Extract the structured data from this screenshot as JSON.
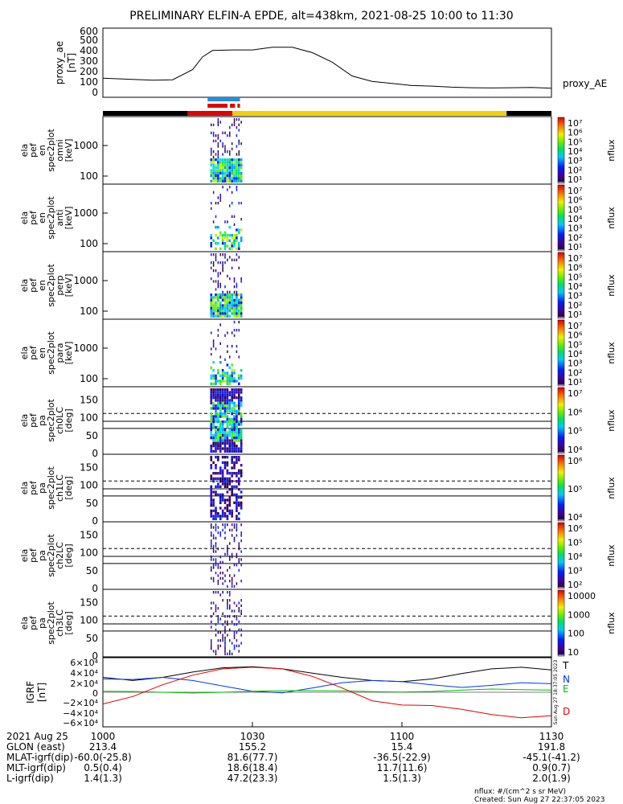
{
  "title": "PRELIMINARY ELFIN-A EPDE, alt=438km, 2021-08-25 10:00 to 11:30",
  "ae_panel": {
    "ylabel": [
      "proxy_ae",
      "[nT]"
    ],
    "ticks": [
      "600",
      "500",
      "400",
      "300",
      "200",
      "100",
      "0"
    ],
    "legend": "proxy_AE"
  },
  "spec_panels": [
    {
      "ylabel": [
        "ela",
        "pef",
        "en",
        "spec2plot",
        "omni",
        "[keV]"
      ],
      "ticks": [
        "1000",
        "100"
      ],
      "cbar_ticks": [
        "10⁷",
        "10⁶",
        "10⁵",
        "10⁴",
        "10³",
        "10²",
        "10¹"
      ],
      "cbar_label": "nflux"
    },
    {
      "ylabel": [
        "ela",
        "pef",
        "en",
        "spec2plot",
        "anti",
        "[keV]"
      ],
      "ticks": [
        "1000",
        "100"
      ],
      "cbar_ticks": [
        "10⁷",
        "10⁶",
        "10⁵",
        "10⁴",
        "10³",
        "10²",
        "10¹"
      ],
      "cbar_label": "nflux"
    },
    {
      "ylabel": [
        "ela",
        "pef",
        "en",
        "spec2plot",
        "perp",
        "[keV]"
      ],
      "ticks": [
        "1000",
        "100"
      ],
      "cbar_ticks": [
        "10⁷",
        "10⁶",
        "10⁵",
        "10⁴",
        "10³",
        "10²",
        "10¹"
      ],
      "cbar_label": "nflux"
    },
    {
      "ylabel": [
        "ela",
        "pef",
        "en",
        "spec2plot",
        "para",
        "[keV]"
      ],
      "ticks": [
        "1000",
        "100"
      ],
      "cbar_ticks": [
        "10⁷",
        "10⁶",
        "10⁵",
        "10⁴",
        "10³",
        "10²",
        "10¹"
      ],
      "cbar_label": "nflux"
    },
    {
      "ylabel": [
        "ela",
        "pef",
        "pa",
        "spec2plot",
        "ch0LC",
        "[deg]"
      ],
      "ticks": [
        "150",
        "100",
        "50",
        "0"
      ],
      "cbar_ticks": [
        "10⁷",
        "10⁶",
        "10⁵",
        "10⁴"
      ],
      "cbar_label": "nflux"
    },
    {
      "ylabel": [
        "ela",
        "pef",
        "pa",
        "spec2plot",
        "ch1LC",
        "[deg]"
      ],
      "ticks": [
        "150",
        "100",
        "50",
        "0"
      ],
      "cbar_ticks": [
        "10⁶",
        "10⁵",
        "10⁴"
      ],
      "cbar_label": "nflux"
    },
    {
      "ylabel": [
        "ela",
        "pef",
        "pa",
        "spec2plot",
        "ch2LC",
        "[deg]"
      ],
      "ticks": [
        "150",
        "100",
        "50",
        "0"
      ],
      "cbar_ticks": [
        "10⁶",
        "10⁵",
        "10⁴",
        "10³",
        "10²"
      ],
      "cbar_label": "nflux"
    },
    {
      "ylabel": [
        "ela",
        "pef",
        "pa",
        "spec2plot",
        "ch3LC",
        "[deg]"
      ],
      "ticks": [
        "150",
        "100",
        "50",
        "0"
      ],
      "cbar_ticks": [
        "10000",
        "1000",
        "100",
        "10"
      ],
      "cbar_label": "nflux"
    }
  ],
  "bfield_panel": {
    "ylabel": [
      "IGRF",
      "[nT]"
    ],
    "ticks": [
      "6×10⁴",
      "4×10⁴",
      "2×10⁴",
      "0",
      "−2×10⁴",
      "−4×10⁴",
      "−6×10⁴"
    ],
    "legend": [
      "T",
      "N",
      "E",
      "D"
    ],
    "created_side": "Sun Aug 27 18:37:05 2023"
  },
  "footer": {
    "rows": [
      {
        "label": "2021 Aug 25",
        "vals": [
          "1000",
          "1030",
          "1100",
          "1130"
        ]
      },
      {
        "label": "GLON (east)",
        "vals": [
          "213.4",
          "155.2",
          "15.4",
          "191.8"
        ]
      },
      {
        "label": "MLAT-igrf(dip)",
        "vals": [
          "-60.0(-25.8)",
          "81.6(77.7)",
          "-36.5(-22.9)",
          "-45.1(-41.2)"
        ]
      },
      {
        "label": "MLT-igrf(dip)",
        "vals": [
          "0.5(0.4)",
          "18.6(18.4)",
          "11.7(11.6)",
          "0.9(0.7)"
        ]
      },
      {
        "label": "L-igrf(dip)",
        "vals": [
          "1.4(1.3)",
          "47.2(23.3)",
          "1.5(1.3)",
          "2.0(1.9)"
        ]
      }
    ],
    "units": "nflux: #/(cm^2 s sr MeV)",
    "created": "Created: Sun Aug 27 22:37:05 2023"
  },
  "colors": {
    "ae": "#000000",
    "T": "#000000",
    "N": "#0033ff",
    "E": "#00c000",
    "D": "#e00000",
    "bar_yellow": "#f5d000",
    "bar_black": "#000000",
    "bar_blue": "#1f8fe8",
    "bar_red": "#e00000"
  },
  "chart_data": {
    "type": "line",
    "title": "PRELIMINARY ELFIN-A EPDE, alt=438km, 2021-08-25 10:00 to 11:30",
    "x_ticks": [
      "1000",
      "1030",
      "1100",
      "1130"
    ],
    "proxy_ae": {
      "ylim": [
        0,
        650
      ],
      "x_minutes": [
        0,
        5,
        10,
        14,
        18,
        20,
        22,
        26,
        30,
        34,
        38,
        42,
        46,
        50,
        54,
        58,
        62,
        66,
        70,
        74,
        78,
        82,
        86,
        90
      ],
      "values": [
        180,
        170,
        160,
        165,
        260,
        380,
        440,
        445,
        445,
        470,
        470,
        420,
        330,
        200,
        150,
        130,
        110,
        105,
        95,
        90,
        88,
        90,
        92,
        85
      ]
    },
    "igrf": {
      "ylim": [
        -65000,
        65000
      ],
      "x_minutes": [
        0,
        6,
        12,
        18,
        24,
        30,
        36,
        42,
        48,
        54,
        60,
        66,
        72,
        78,
        84,
        90
      ],
      "series": [
        {
          "name": "T",
          "values": [
            28000,
            22000,
            28000,
            38000,
            46000,
            48000,
            44000,
            36000,
            28000,
            22000,
            20000,
            25000,
            35000,
            44000,
            47000,
            42000
          ]
        },
        {
          "name": "N",
          "values": [
            25000,
            24000,
            28000,
            22000,
            12000,
            2000,
            -1000,
            8000,
            18000,
            22000,
            20000,
            14000,
            9000,
            13000,
            18000,
            16000
          ]
        },
        {
          "name": "E",
          "values": [
            2000,
            1500,
            0,
            -1500,
            0,
            2000,
            3000,
            3000,
            2500,
            1000,
            500,
            1500,
            4000,
            6000,
            5000,
            4000
          ]
        },
        {
          "name": "D",
          "values": [
            -22000,
            -8000,
            14000,
            32000,
            44000,
            47000,
            44000,
            30000,
            8000,
            -16000,
            -24000,
            -25000,
            -32000,
            -42000,
            -48000,
            -44000
          ]
        }
      ]
    },
    "ephemeris_bar": {
      "segments": [
        {
          "from_min": 0,
          "to_min": 17,
          "color": "black"
        },
        {
          "from_min": 17,
          "to_min": 26,
          "color": "red"
        },
        {
          "from_min": 26,
          "to_min": 81,
          "color": "yellow"
        },
        {
          "from_min": 81,
          "to_min": 90,
          "color": "black"
        }
      ],
      "blue_marks": [
        [
          21,
          27.5
        ]
      ],
      "red_marks": [
        [
          21,
          25
        ],
        [
          25.5,
          26.5
        ],
        [
          27,
          27.5
        ]
      ]
    },
    "spectra_interval_min": [
      21.5,
      28
    ],
    "colorbar_ticks_note": "nflux"
  }
}
